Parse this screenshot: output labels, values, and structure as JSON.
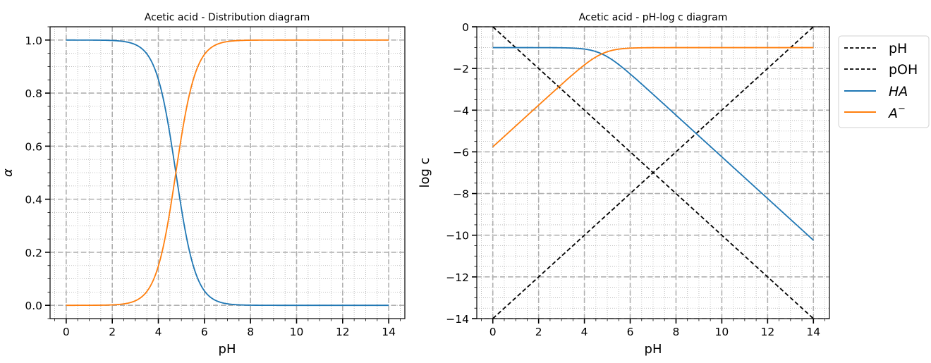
{
  "chart_data": [
    {
      "type": "line",
      "title": "Acetic acid - Distribution diagram",
      "xlabel": "pH",
      "ylabel": "α",
      "xlim": [
        -0.7,
        14.7
      ],
      "ylim": [
        -0.05,
        1.05
      ],
      "xticks": [
        0,
        2,
        4,
        6,
        8,
        10,
        12,
        14
      ],
      "xtick_labels": [
        "0",
        "2",
        "4",
        "6",
        "8",
        "10",
        "12",
        "14"
      ],
      "yticks": [
        0.0,
        0.2,
        0.4,
        0.6,
        0.8,
        1.0
      ],
      "ytick_labels": [
        "0.0",
        "0.2",
        "0.4",
        "0.6",
        "0.8",
        "1.0"
      ],
      "grid": {
        "major": "dashed",
        "minor": "dotted"
      },
      "legend": null,
      "pKa": 4.76,
      "x": [
        0,
        1,
        2,
        3,
        3.5,
        4,
        4.5,
        4.76,
        5,
        5.5,
        6,
        6.5,
        7,
        8,
        10,
        12,
        14
      ],
      "series": [
        {
          "name": "HA",
          "color": "#1f77b4",
          "values": [
            1.0,
            0.9999,
            0.9983,
            0.983,
            0.948,
            0.852,
            0.645,
            0.5,
            0.365,
            0.154,
            0.054,
            0.018,
            0.006,
            0.0006,
            0.0,
            0.0,
            0.0
          ]
        },
        {
          "name": "A⁻",
          "color": "#ff7f0e",
          "values": [
            0.0,
            0.0001,
            0.0017,
            0.017,
            0.052,
            0.148,
            0.355,
            0.5,
            0.635,
            0.846,
            0.946,
            0.982,
            0.994,
            0.9994,
            1.0,
            1.0,
            1.0
          ]
        }
      ]
    },
    {
      "type": "line",
      "title": "Acetic acid - pH-log c diagram",
      "xlabel": "pH",
      "ylabel": "log c",
      "xlim": [
        -0.7,
        14.7
      ],
      "ylim": [
        -14,
        0
      ],
      "xticks": [
        0,
        2,
        4,
        6,
        8,
        10,
        12,
        14
      ],
      "xtick_labels": [
        "0",
        "2",
        "4",
        "6",
        "8",
        "10",
        "12",
        "14"
      ],
      "yticks": [
        0,
        -2,
        -4,
        -6,
        -8,
        -10,
        -12,
        -14
      ],
      "ytick_labels": [
        "0",
        "−2",
        "−4",
        "−6",
        "−8",
        "−10",
        "−12",
        "−14"
      ],
      "grid": {
        "major": "dashed",
        "minor": "dotted"
      },
      "legend": {
        "position": "outside upper right",
        "entries": [
          "pH",
          "pOH",
          "HA",
          "A⁻"
        ]
      },
      "pKa": 4.76,
      "log_C": -1,
      "x": [
        0,
        2,
        4,
        4.76,
        6,
        8,
        10,
        12,
        14
      ],
      "series": [
        {
          "name": "pH",
          "color": "#000000",
          "style": "dashed",
          "values": [
            0,
            -2,
            -4,
            -4.76,
            -6,
            -8,
            -10,
            -12,
            -14
          ]
        },
        {
          "name": "pOH",
          "color": "#000000",
          "style": "dashed",
          "values": [
            -14,
            -12,
            -10,
            -9.24,
            -8,
            -6,
            -4,
            -2,
            0
          ]
        },
        {
          "name": "HA",
          "color": "#1f77b4",
          "style": "solid",
          "values": [
            -1.0,
            -1.0,
            -1.07,
            -1.3,
            -2.26,
            -4.24,
            -6.24,
            -8.24,
            -10.24
          ]
        },
        {
          "name": "A⁻",
          "color": "#ff7f0e",
          "style": "solid",
          "values": [
            -5.76,
            -3.76,
            -1.83,
            -1.3,
            -1.03,
            -1.0,
            -1.0,
            -1.0,
            -1.0
          ]
        }
      ]
    }
  ],
  "plots": {
    "left": {
      "title": "Acetic acid - Distribution diagram",
      "xlabel": "pH",
      "ylabel": "α"
    },
    "right": {
      "title": "Acetic acid - pH-log c diagram",
      "xlabel": "pH",
      "ylabel": "log c",
      "legend": [
        {
          "label": "pH",
          "color": "#000000",
          "style": "dashed"
        },
        {
          "label": "pOH",
          "color": "#000000",
          "style": "dashed"
        },
        {
          "label": "HA",
          "color": "#1f77b4",
          "style": "solid",
          "italic": true
        },
        {
          "label": "A",
          "sup": "−",
          "color": "#ff7f0e",
          "style": "solid",
          "italic": true
        }
      ]
    }
  },
  "colors": {
    "grid_major": "#b0b0b0",
    "grid_minor": "#b0b0b0",
    "axes": "#000000",
    "HA": "#1f77b4",
    "A": "#ff7f0e"
  }
}
